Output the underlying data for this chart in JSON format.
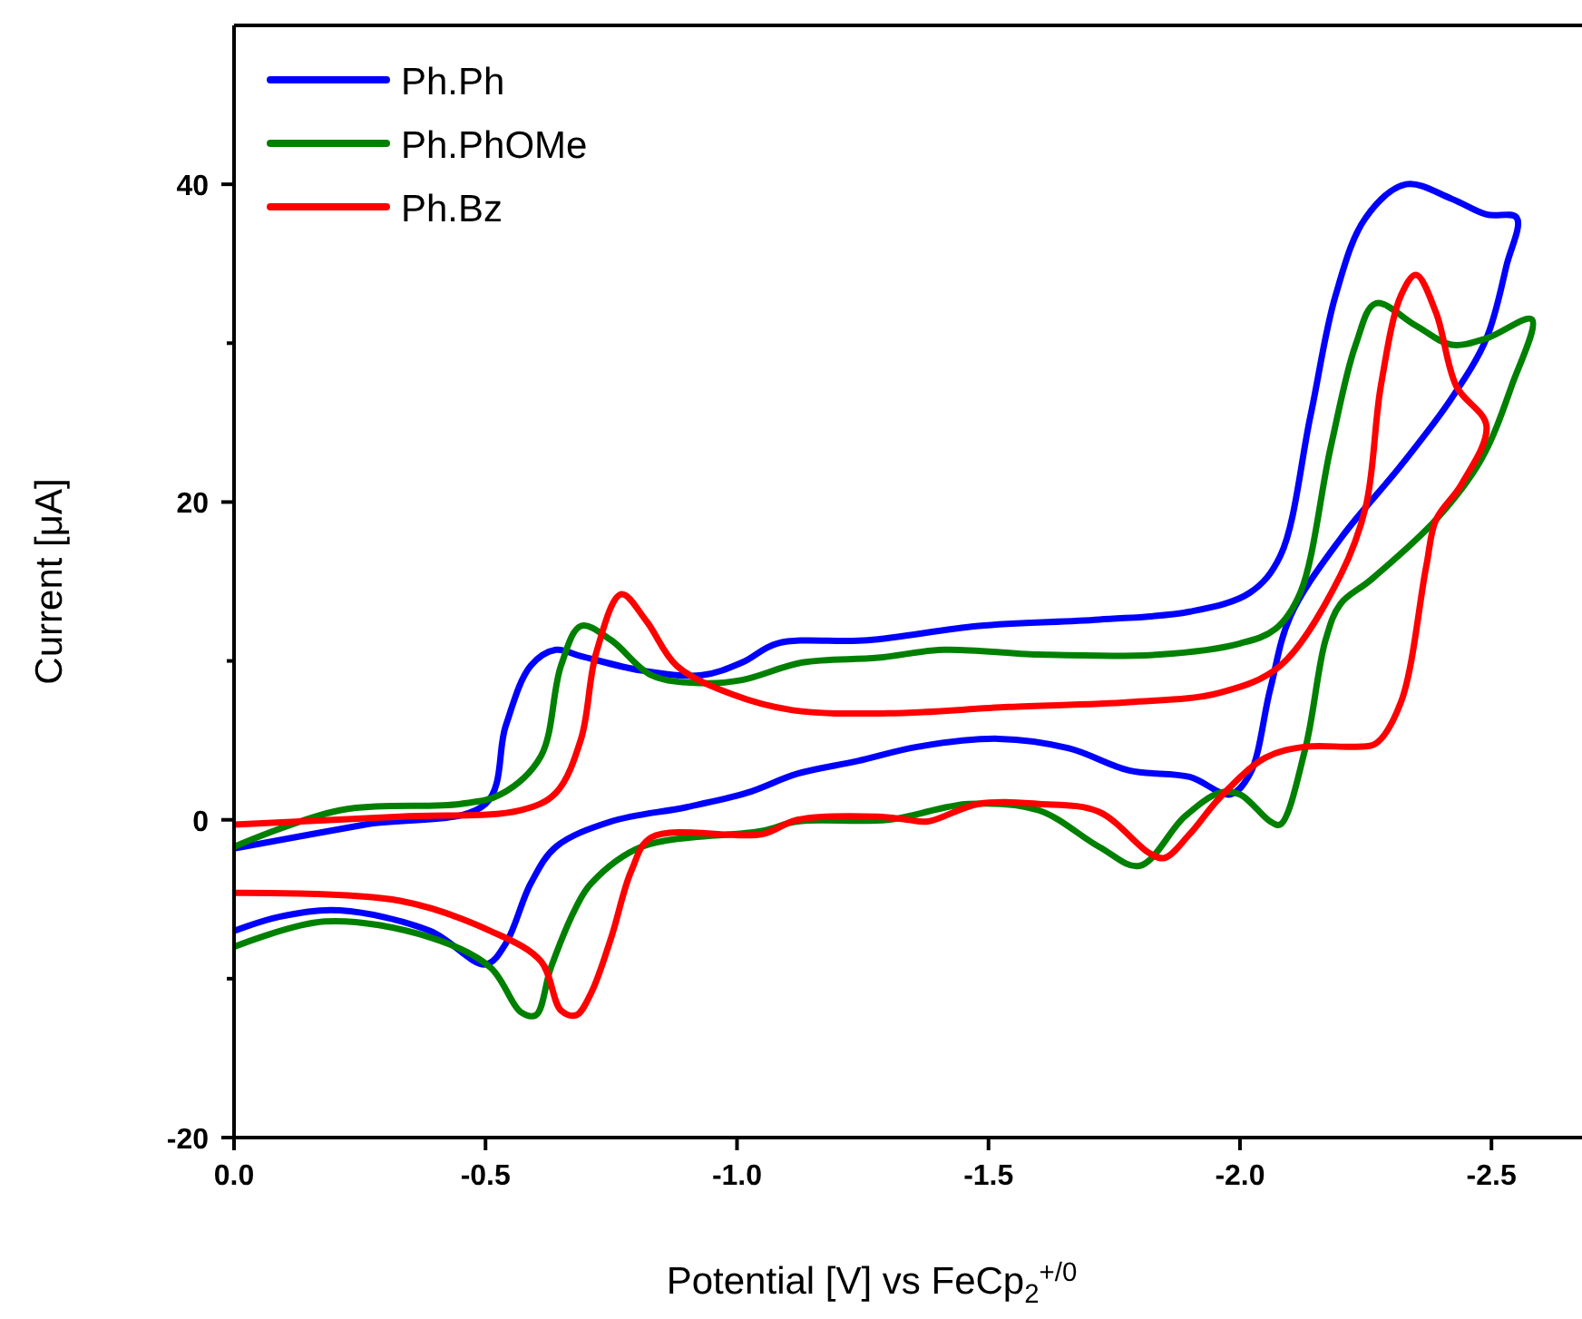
{
  "chart_data": {
    "type": "line",
    "xlabel": "Potential [V] vs FeCp$_{2}$$^{+/0}$",
    "ylabel": "Current [μA]",
    "xlim": [
      0,
      -2.68
    ],
    "ylim": [
      -20,
      50
    ],
    "xticks": [
      {
        "value": 0,
        "label": "0.0"
      },
      {
        "value": -0.5,
        "label": "-0.5"
      },
      {
        "value": -1,
        "label": "-1.0"
      },
      {
        "value": -1.5,
        "label": "-1.5"
      },
      {
        "value": -2,
        "label": "-2.0"
      },
      {
        "value": -2.5,
        "label": "-2.5"
      }
    ],
    "yticks": [
      -20,
      {
        "value": -10,
        "label": null
      },
      0,
      {
        "value": 10,
        "label": null
      },
      20,
      {
        "value": 30,
        "label": null
      },
      40
    ],
    "legend": "top left",
    "series": [
      {
        "name": "Ph.Ph",
        "color": "#0000ff",
        "x": [
          0,
          -0.26,
          -0.5,
          -0.54,
          -0.59,
          -0.64,
          -0.69,
          -0.81,
          -0.93,
          -1.01,
          -1.08,
          -1.26,
          -1.48,
          -1.72,
          -1.9,
          -2.02,
          -2.08,
          -2.14,
          -2.19,
          -2.25,
          -2.33,
          -2.42,
          -2.49,
          -2.55,
          -2.53,
          -2.49,
          -2.42,
          -2.32,
          -2.2,
          -2.1,
          -2.06,
          -2.02,
          -1.98,
          -1.9,
          -1.78,
          -1.66,
          -1.52,
          -1.36,
          -1.24,
          -1.12,
          -1.02,
          -0.9,
          -0.75,
          -0.64,
          -0.59,
          -0.54,
          -0.5,
          -0.39,
          -0.21,
          -0.09,
          0
        ],
        "values": [
          -1.8,
          -0.3,
          1.0,
          5.9,
          9.7,
          10.7,
          10.3,
          9.4,
          9.1,
          9.9,
          11.1,
          11.3,
          12.2,
          12.6,
          13.1,
          14.3,
          16.6,
          25.4,
          33.0,
          37.9,
          40.0,
          39.1,
          38.1,
          37.9,
          34.9,
          30.3,
          26.5,
          22.3,
          17.7,
          12.8,
          8.2,
          2.9,
          1.6,
          2.7,
          3.1,
          4.5,
          5.1,
          4.6,
          3.7,
          2.9,
          1.7,
          0.8,
          -0.1,
          -1.7,
          -4.0,
          -7.8,
          -9.1,
          -7.0,
          -5.7,
          -6.1,
          -7.0
        ]
      },
      {
        "name": "Ph.PhOMe",
        "color": "#008000",
        "x": [
          0,
          -0.21,
          -0.45,
          -0.53,
          -0.61,
          -0.65,
          -0.69,
          -0.75,
          -0.83,
          -0.93,
          -1.01,
          -1.13,
          -1.28,
          -1.41,
          -1.6,
          -1.84,
          -2.0,
          -2.07,
          -2.12,
          -2.18,
          -2.23,
          -2.27,
          -2.35,
          -2.42,
          -2.49,
          -2.58,
          -2.54,
          -2.48,
          -2.39,
          -2.26,
          -2.2,
          -2.17,
          -2.13,
          -2.08,
          -2.06,
          -2.0,
          -1.96,
          -1.89,
          -1.8,
          -1.72,
          -1.6,
          -1.46,
          -1.3,
          -1.12,
          -1.05,
          -0.81,
          -0.71,
          -0.68,
          -0.63,
          -0.6,
          -0.57,
          -0.51,
          -0.39,
          -0.18,
          0
        ],
        "values": [
          -1.7,
          0.6,
          1.0,
          1.6,
          4.0,
          9.7,
          12.2,
          11.3,
          9.1,
          8.6,
          8.8,
          9.9,
          10.2,
          10.7,
          10.4,
          10.4,
          11.1,
          12.0,
          14.3,
          23.4,
          29.9,
          32.5,
          31.1,
          29.9,
          30.3,
          31.5,
          27.3,
          22.7,
          18.9,
          15.1,
          13.6,
          11.3,
          4.5,
          -0.3,
          -0.1,
          1.6,
          1.7,
          0.2,
          -2.9,
          -1.7,
          0.6,
          1.0,
          0.0,
          -0.1,
          -0.7,
          -1.7,
          -4.0,
          -5.5,
          -9.3,
          -12.3,
          -12.1,
          -9.3,
          -7.4,
          -6.4,
          -8.0
        ]
      },
      {
        "name": "Ph.Bz",
        "color": "#ff0000",
        "x": [
          0,
          -0.33,
          -0.57,
          -0.64,
          -0.69,
          -0.72,
          -0.77,
          -0.82,
          -0.88,
          -0.99,
          -1.11,
          -1.3,
          -1.54,
          -1.78,
          -1.96,
          -2.08,
          -2.2,
          -2.25,
          -2.28,
          -2.32,
          -2.35,
          -2.39,
          -2.43,
          -2.49,
          -2.44,
          -2.39,
          -2.37,
          -2.32,
          -2.27,
          -2.23,
          -2.13,
          -2.05,
          -1.96,
          -1.9,
          -1.85,
          -1.82,
          -1.72,
          -1.6,
          -1.48,
          -1.38,
          -1.34,
          -1.28,
          -1.12,
          -1.05,
          -0.83,
          -0.79,
          -0.75,
          -0.71,
          -0.68,
          -0.65,
          -0.61,
          -0.51,
          -0.33,
          0
        ],
        "values": [
          -0.3,
          0.2,
          0.6,
          1.7,
          5.1,
          10.5,
          14.2,
          12.5,
          9.7,
          7.9,
          6.9,
          6.7,
          7.1,
          7.4,
          8.0,
          9.7,
          15.4,
          19.7,
          27.3,
          33.0,
          34.3,
          31.9,
          27.3,
          24.8,
          21.1,
          18.9,
          15.9,
          7.4,
          4.8,
          4.6,
          4.6,
          3.9,
          1.4,
          -0.9,
          -2.4,
          -2.1,
          0.5,
          1.0,
          1.0,
          -0.1,
          0.0,
          0.2,
          0.0,
          -0.9,
          -1.1,
          -3.2,
          -7.4,
          -10.9,
          -12.3,
          -12.0,
          -8.9,
          -7.0,
          -5.1,
          -4.6
        ]
      }
    ]
  }
}
